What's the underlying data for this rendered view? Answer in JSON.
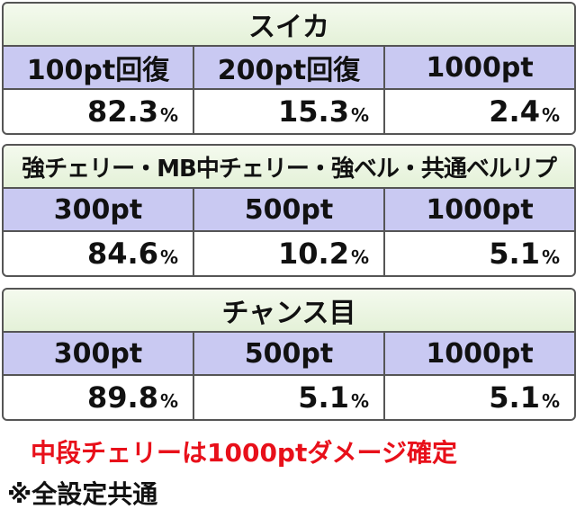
{
  "tables": [
    {
      "title": "スイカ",
      "headers": [
        "100pt回復",
        "200pt回復",
        "1000pt"
      ],
      "cells": [
        {
          "value": "82.3",
          "unit": "%"
        },
        {
          "value": "15.3",
          "unit": "%"
        },
        {
          "value": "2.4",
          "unit": "%"
        }
      ]
    },
    {
      "title": "強チェリー・MB中チェリー・強ベル・共通ベルリプ",
      "headers": [
        "300pt",
        "500pt",
        "1000pt"
      ],
      "cells": [
        {
          "value": "84.6",
          "unit": "%"
        },
        {
          "value": "10.2",
          "unit": "%"
        },
        {
          "value": "5.1",
          "unit": "%"
        }
      ]
    },
    {
      "title": "チャンス目",
      "headers": [
        "300pt",
        "500pt",
        "1000pt"
      ],
      "cells": [
        {
          "value": "89.8",
          "unit": "%"
        },
        {
          "value": "5.1",
          "unit": "%"
        },
        {
          "value": "5.1",
          "unit": "%"
        }
      ]
    }
  ],
  "notes": [
    "中段チェリーは1000ptダメージ確定",
    "※全設定共通"
  ]
}
